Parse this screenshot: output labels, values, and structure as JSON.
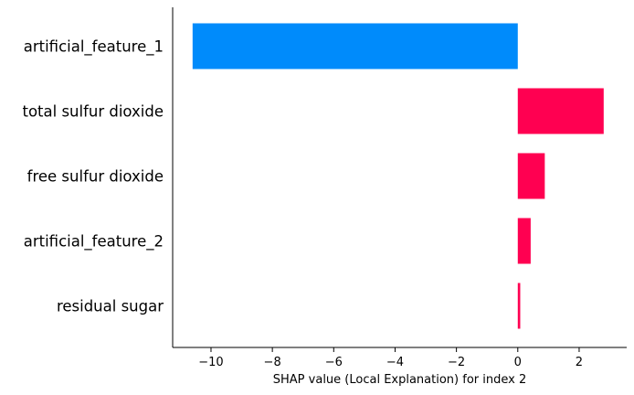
{
  "chart_data": {
    "type": "bar",
    "orientation": "horizontal",
    "categories": [
      "artificial_feature_1",
      "total sulfur dioxide",
      "free sulfur dioxide",
      "artificial_feature_2",
      "residual sugar"
    ],
    "values": [
      -10.6,
      2.8,
      0.88,
      0.42,
      0.08
    ],
    "title": "",
    "xlabel": "SHAP value (Local Explanation) for index 2",
    "ylabel": "",
    "xlim": [
      -11.25,
      3.55
    ],
    "xticks": [
      -10,
      -8,
      -6,
      -4,
      -2,
      0,
      2
    ],
    "xtick_labels": [
      "−10",
      "−8",
      "−6",
      "−4",
      "−2",
      "0",
      "2"
    ],
    "grid": false,
    "legend": "none",
    "colors": {
      "negative": "#008bfb",
      "positive": "#ff0051",
      "axis": "#000000"
    }
  }
}
